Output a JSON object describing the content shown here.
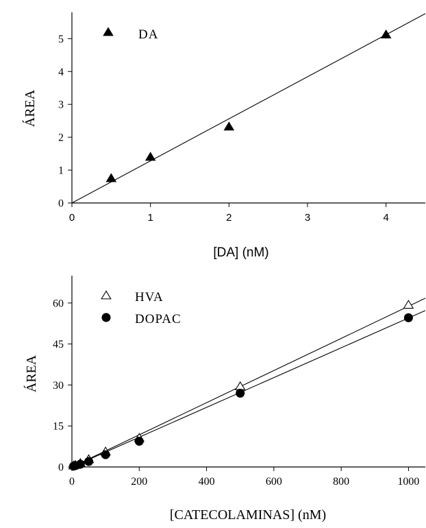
{
  "chart_data": [
    {
      "type": "scatter",
      "ylabel": "ÁREA",
      "xlabel": "[DA] (nM)",
      "xlim": [
        0,
        4.5
      ],
      "ylim": [
        0,
        5.8
      ],
      "xticks": [
        "0",
        "1",
        "2",
        "3",
        "4"
      ],
      "yticks": [
        "0",
        "1",
        "2",
        "3",
        "4",
        "5"
      ],
      "legend_position": "top-left",
      "grid": false,
      "series": [
        {
          "name": "DA",
          "marker": "filled-triangle",
          "x": [
            0.5,
            1,
            2,
            4
          ],
          "y": [
            0.75,
            1.4,
            2.32,
            5.12
          ],
          "fit": {
            "slope": 1.28,
            "intercept": 0
          }
        }
      ]
    },
    {
      "type": "scatter",
      "ylabel": "ÁREA",
      "xlabel": "[CATECOLAMINAS] (nM)",
      "xlim": [
        0,
        1050
      ],
      "ylim": [
        0,
        70
      ],
      "xticks": [
        "0",
        "200",
        "400",
        "600",
        "800",
        "1000"
      ],
      "yticks": [
        "0",
        "15",
        "30",
        "45",
        "60"
      ],
      "legend_position": "top-left",
      "grid": false,
      "series": [
        {
          "name": "HVA",
          "marker": "open-triangle",
          "x": [
            5,
            10,
            25,
            50,
            100,
            200,
            500,
            1000
          ],
          "y": [
            0.5,
            0.7,
            1.4,
            2.8,
            5.6,
            10.6,
            29.5,
            59.3
          ],
          "fit": {
            "slope": 0.0588,
            "intercept": 0
          }
        },
        {
          "name": "DOPAC",
          "marker": "filled-circle",
          "x": [
            5,
            10,
            25,
            50,
            100,
            200,
            500,
            1000
          ],
          "y": [
            0.3,
            0.5,
            1.0,
            2.0,
            4.5,
            9.4,
            27.0,
            54.6
          ],
          "fit": {
            "slope": 0.0545,
            "intercept": 0
          }
        }
      ]
    }
  ]
}
